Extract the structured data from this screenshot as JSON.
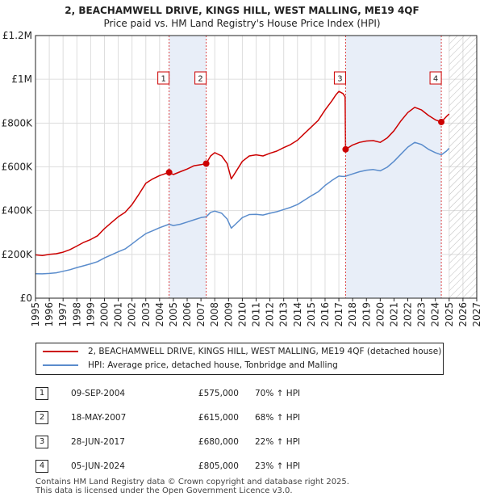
{
  "colors": {
    "property": "#cc0000",
    "hpi": "#5a8ccc",
    "grid": "#dddddd",
    "shade": "#e8eef8",
    "marker_line": "#dd4444"
  },
  "chart_data": {
    "type": "line",
    "title": "2, BEACHAMWELL DRIVE, KINGS HILL, WEST MALLING, ME19 4QF",
    "subtitle": "Price paid vs. HM Land Registry's House Price Index (HPI)",
    "xlim": [
      1995,
      2027
    ],
    "ylim": [
      0,
      1200000
    ],
    "x_ticks": [
      1995,
      1996,
      1997,
      1998,
      1999,
      2000,
      2001,
      2002,
      2003,
      2004,
      2005,
      2006,
      2007,
      2008,
      2009,
      2010,
      2011,
      2012,
      2013,
      2014,
      2015,
      2016,
      2017,
      2018,
      2019,
      2020,
      2021,
      2022,
      2023,
      2024,
      2025,
      2026,
      2027
    ],
    "y_ticks": [
      {
        "value": 0,
        "label": "£0"
      },
      {
        "value": 200000,
        "label": "£200K"
      },
      {
        "value": 400000,
        "label": "£400K"
      },
      {
        "value": 600000,
        "label": "£600K"
      },
      {
        "value": 800000,
        "label": "£800K"
      },
      {
        "value": 1000000,
        "label": "£1M"
      },
      {
        "value": 1200000,
        "label": "£1.2M"
      }
    ],
    "shaded_ranges": [
      [
        2004.69,
        2007.38
      ],
      [
        2017.49,
        2024.43
      ]
    ],
    "future_hatch_from": 2025.0,
    "series": [
      {
        "name": "2, BEACHAMWELL DRIVE, KINGS HILL, WEST MALLING, ME19 4QF (detached house)",
        "color": "#cc0000",
        "points": [
          [
            1995.0,
            198000
          ],
          [
            1995.5,
            195000
          ],
          [
            1996.0,
            200000
          ],
          [
            1996.5,
            203000
          ],
          [
            1997.0,
            210000
          ],
          [
            1997.5,
            222000
          ],
          [
            1998.0,
            238000
          ],
          [
            1998.5,
            255000
          ],
          [
            1999.0,
            268000
          ],
          [
            1999.5,
            285000
          ],
          [
            2000.0,
            318000
          ],
          [
            2000.5,
            345000
          ],
          [
            2001.0,
            372000
          ],
          [
            2001.5,
            392000
          ],
          [
            2002.0,
            428000
          ],
          [
            2002.5,
            475000
          ],
          [
            2003.0,
            525000
          ],
          [
            2003.5,
            545000
          ],
          [
            2004.0,
            560000
          ],
          [
            2004.69,
            575000
          ],
          [
            2005.0,
            565000
          ],
          [
            2005.5,
            578000
          ],
          [
            2006.0,
            590000
          ],
          [
            2006.5,
            605000
          ],
          [
            2007.0,
            610000
          ],
          [
            2007.38,
            615000
          ],
          [
            2007.7,
            650000
          ],
          [
            2008.0,
            665000
          ],
          [
            2008.5,
            650000
          ],
          [
            2008.9,
            615000
          ],
          [
            2009.2,
            545000
          ],
          [
            2009.5,
            575000
          ],
          [
            2010.0,
            625000
          ],
          [
            2010.5,
            650000
          ],
          [
            2011.0,
            655000
          ],
          [
            2011.5,
            650000
          ],
          [
            2012.0,
            662000
          ],
          [
            2012.5,
            672000
          ],
          [
            2013.0,
            688000
          ],
          [
            2013.5,
            702000
          ],
          [
            2014.0,
            722000
          ],
          [
            2014.5,
            752000
          ],
          [
            2015.0,
            782000
          ],
          [
            2015.5,
            812000
          ],
          [
            2016.0,
            860000
          ],
          [
            2016.5,
            902000
          ],
          [
            2016.8,
            930000
          ],
          [
            2017.0,
            945000
          ],
          [
            2017.3,
            935000
          ],
          [
            2017.45,
            920000
          ],
          [
            2017.49,
            680000
          ],
          [
            2018.0,
            700000
          ],
          [
            2018.5,
            712000
          ],
          [
            2019.0,
            718000
          ],
          [
            2019.5,
            720000
          ],
          [
            2020.0,
            712000
          ],
          [
            2020.5,
            732000
          ],
          [
            2021.0,
            765000
          ],
          [
            2021.5,
            810000
          ],
          [
            2022.0,
            848000
          ],
          [
            2022.5,
            872000
          ],
          [
            2023.0,
            860000
          ],
          [
            2023.5,
            835000
          ],
          [
            2024.0,
            815000
          ],
          [
            2024.43,
            805000
          ],
          [
            2024.8,
            830000
          ],
          [
            2025.0,
            842000
          ]
        ]
      },
      {
        "name": "HPI: Average price, detached house, Tonbridge and Malling",
        "color": "#5a8ccc",
        "points": [
          [
            1995.0,
            112000
          ],
          [
            1995.5,
            111000
          ],
          [
            1996.0,
            113000
          ],
          [
            1996.5,
            116000
          ],
          [
            1997.0,
            123000
          ],
          [
            1997.5,
            130000
          ],
          [
            1998.0,
            140000
          ],
          [
            1998.5,
            148000
          ],
          [
            1999.0,
            157000
          ],
          [
            1999.5,
            167000
          ],
          [
            2000.0,
            184000
          ],
          [
            2000.5,
            198000
          ],
          [
            2001.0,
            212000
          ],
          [
            2001.5,
            225000
          ],
          [
            2002.0,
            248000
          ],
          [
            2002.5,
            272000
          ],
          [
            2003.0,
            295000
          ],
          [
            2003.5,
            308000
          ],
          [
            2004.0,
            322000
          ],
          [
            2004.69,
            338000
          ],
          [
            2005.0,
            332000
          ],
          [
            2005.5,
            338000
          ],
          [
            2006.0,
            348000
          ],
          [
            2006.5,
            358000
          ],
          [
            2007.0,
            368000
          ],
          [
            2007.38,
            372000
          ],
          [
            2007.7,
            392000
          ],
          [
            2008.0,
            398000
          ],
          [
            2008.5,
            388000
          ],
          [
            2008.9,
            362000
          ],
          [
            2009.2,
            320000
          ],
          [
            2009.5,
            338000
          ],
          [
            2010.0,
            368000
          ],
          [
            2010.5,
            382000
          ],
          [
            2011.0,
            383000
          ],
          [
            2011.5,
            380000
          ],
          [
            2012.0,
            388000
          ],
          [
            2012.5,
            395000
          ],
          [
            2013.0,
            405000
          ],
          [
            2013.5,
            415000
          ],
          [
            2014.0,
            428000
          ],
          [
            2014.5,
            448000
          ],
          [
            2015.0,
            468000
          ],
          [
            2015.5,
            486000
          ],
          [
            2016.0,
            515000
          ],
          [
            2016.5,
            538000
          ],
          [
            2016.8,
            550000
          ],
          [
            2017.0,
            558000
          ],
          [
            2017.3,
            556000
          ],
          [
            2017.49,
            557000
          ],
          [
            2018.0,
            568000
          ],
          [
            2018.5,
            578000
          ],
          [
            2019.0,
            585000
          ],
          [
            2019.5,
            588000
          ],
          [
            2020.0,
            582000
          ],
          [
            2020.5,
            598000
          ],
          [
            2021.0,
            625000
          ],
          [
            2021.5,
            658000
          ],
          [
            2022.0,
            690000
          ],
          [
            2022.5,
            712000
          ],
          [
            2023.0,
            702000
          ],
          [
            2023.5,
            680000
          ],
          [
            2024.0,
            665000
          ],
          [
            2024.43,
            655000
          ],
          [
            2024.8,
            672000
          ],
          [
            2025.0,
            685000
          ]
        ]
      }
    ],
    "sales": [
      {
        "id": "1",
        "x": 2004.69,
        "price": 575000
      },
      {
        "id": "2",
        "x": 2007.38,
        "price": 615000
      },
      {
        "id": "3",
        "x": 2017.49,
        "price": 680000
      },
      {
        "id": "4",
        "x": 2024.43,
        "price": 805000
      }
    ]
  },
  "legend": {
    "property_label": "2, BEACHAMWELL DRIVE, KINGS HILL, WEST MALLING, ME19 4QF (detached house)",
    "hpi_label": "HPI: Average price, detached house, Tonbridge and Malling"
  },
  "transactions": [
    {
      "num": "1",
      "date": "09-SEP-2004",
      "price": "£575,000",
      "hpi": "70% ↑ HPI"
    },
    {
      "num": "2",
      "date": "18-MAY-2007",
      "price": "£615,000",
      "hpi": "68% ↑ HPI"
    },
    {
      "num": "3",
      "date": "28-JUN-2017",
      "price": "£680,000",
      "hpi": "22% ↑ HPI"
    },
    {
      "num": "4",
      "date": "05-JUN-2024",
      "price": "£805,000",
      "hpi": "23% ↑ HPI"
    }
  ],
  "footer": {
    "line1": "Contains HM Land Registry data © Crown copyright and database right 2025.",
    "line2": "This data is licensed under the Open Government Licence v3.0."
  }
}
